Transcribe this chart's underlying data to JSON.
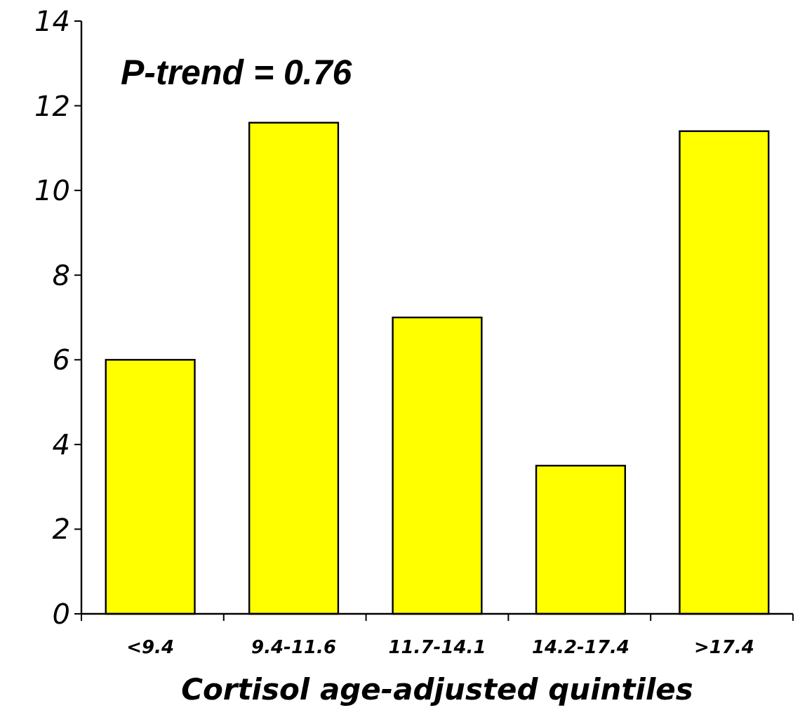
{
  "chart_data": {
    "type": "bar",
    "xlabel": "Cortisol age-adjusted quintiles",
    "categories": [
      "<9.4",
      "9.4-11.6",
      "11.7-14.1",
      "14.2-17.4",
      ">17.4"
    ],
    "values": [
      6.0,
      11.6,
      7.0,
      3.5,
      11.4
    ],
    "color": "#ffff00",
    "ylim": [
      0,
      14
    ],
    "yticks": [
      0,
      2,
      4,
      6,
      8,
      10,
      12,
      14
    ],
    "grid": false,
    "annotations": [
      "P-trend = 0.76"
    ]
  }
}
